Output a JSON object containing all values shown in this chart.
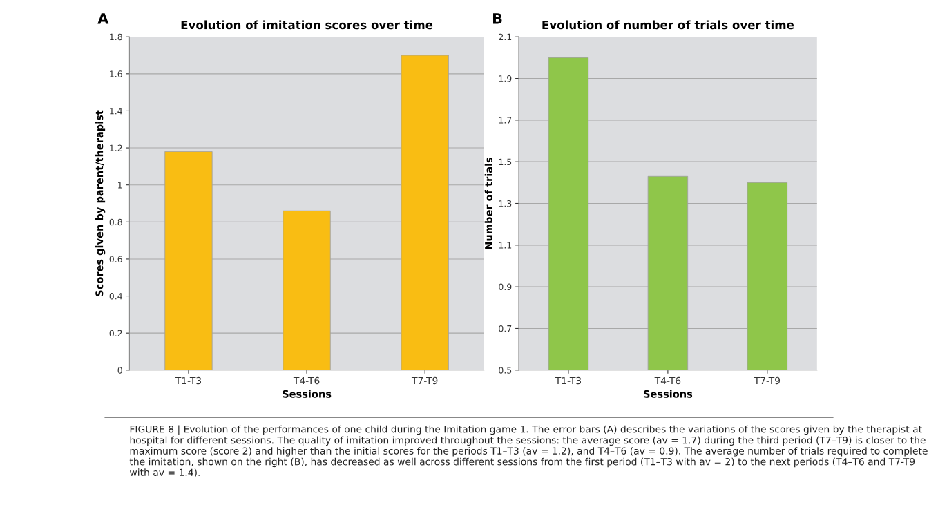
{
  "chart_data": [
    {
      "type": "bar",
      "title": "Evolution of imitation scores over time",
      "xlabel": "Sessions",
      "ylabel": "Scores given by parent/therapist",
      "categories": [
        "T1-T3",
        "T4-T6",
        "T7-T9"
      ],
      "values": [
        1.18,
        0.86,
        1.7
      ],
      "color": "#f9bd13",
      "ylim": [
        0,
        1.8
      ],
      "yticks": [
        0,
        0.2,
        0.4,
        0.6,
        0.8,
        1,
        1.2,
        1.4,
        1.6,
        1.8
      ],
      "grid": "y",
      "annotations": [
        "A",
        "FIGURE 8 | Evolution of the performances of one child during the Imitation game 1. The error bars (A) describes the variations of the scores given by the therapist at hospital for different sessions. The quality of imitation improved throughout the sessions: the average score (av = 1.7) during the third period (T7–T9) is closer to the maximum score (score 2) and higher than the initial scores for the periods T1–T3 (av = 1.2), and T4–T6 (av = 0.9). The average number of trials required to complete the imitation, shown on the right (B), has decreased as well across different sessions from the first period (T1–T3 with av = 2) to the next periods (T4–T6 and T7-T9 with av = 1.4)."
      ]
    },
    {
      "type": "bar",
      "title": "Evolution of number of trials over time",
      "xlabel": "Sessions",
      "ylabel": "Number of trials",
      "categories": [
        "T1-T3",
        "T4-T6",
        "T7-T9"
      ],
      "values": [
        2.0,
        1.43,
        1.4
      ],
      "color": "#8fc64a",
      "ylim": [
        0.5,
        2.1
      ],
      "yticks": [
        0.5,
        0.7,
        0.9,
        1.1,
        1.3,
        1.5,
        1.7,
        1.9,
        2.1
      ],
      "grid": "y",
      "annotations": [
        "B"
      ]
    }
  ]
}
